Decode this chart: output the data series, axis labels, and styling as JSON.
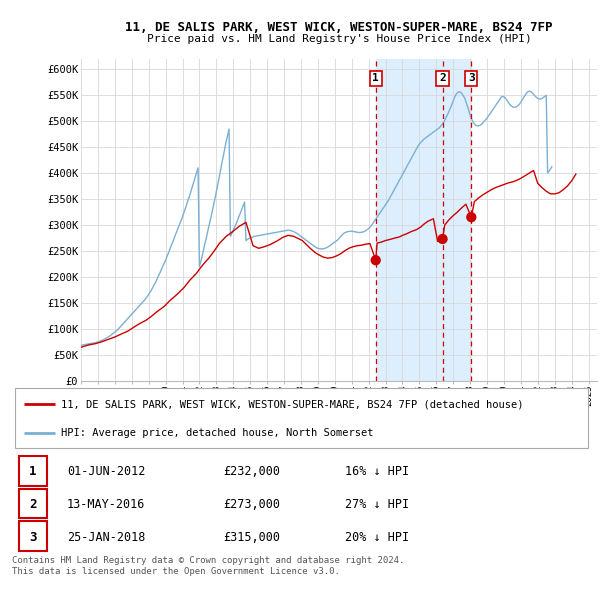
{
  "title": "11, DE SALIS PARK, WEST WICK, WESTON-SUPER-MARE, BS24 7FP",
  "subtitle": "Price paid vs. HM Land Registry's House Price Index (HPI)",
  "background_color": "#ffffff",
  "grid_color": "#d8d8d8",
  "hpi_color": "#7bafd4",
  "price_color": "#cc0000",
  "vline_color": "#cc0000",
  "shade_color": "#ddeeff",
  "yticks": [
    0,
    50000,
    100000,
    150000,
    200000,
    250000,
    300000,
    350000,
    400000,
    450000,
    500000,
    550000,
    600000
  ],
  "ytick_labels": [
    "£0",
    "£50K",
    "£100K",
    "£150K",
    "£200K",
    "£250K",
    "£300K",
    "£350K",
    "£400K",
    "£450K",
    "£500K",
    "£550K",
    "£600K"
  ],
  "xmin": 1995.0,
  "xmax": 2025.5,
  "ymin": 0,
  "ymax": 620000,
  "transaction_dates": [
    2012.42,
    2016.37,
    2018.07
  ],
  "transaction_prices": [
    232000,
    273000,
    315000
  ],
  "transaction_labels": [
    "1",
    "2",
    "3"
  ],
  "legend_property": "11, DE SALIS PARK, WEST WICK, WESTON-SUPER-MARE, BS24 7FP (detached house)",
  "legend_hpi": "HPI: Average price, detached house, North Somerset",
  "sale_rows": [
    {
      "num": "1",
      "date": "01-JUN-2012",
      "price": "£232,000",
      "pct": "16% ↓ HPI"
    },
    {
      "num": "2",
      "date": "13-MAY-2016",
      "price": "£273,000",
      "pct": "27% ↓ HPI"
    },
    {
      "num": "3",
      "date": "25-JAN-2018",
      "price": "£315,000",
      "pct": "20% ↓ HPI"
    }
  ],
  "footer": "Contains HM Land Registry data © Crown copyright and database right 2024.\nThis data is licensed under the Open Government Licence v3.0.",
  "hpi_x": [
    1995.0,
    1995.08,
    1995.17,
    1995.25,
    1995.33,
    1995.42,
    1995.5,
    1995.58,
    1995.67,
    1995.75,
    1995.83,
    1995.92,
    1996.0,
    1996.08,
    1996.17,
    1996.25,
    1996.33,
    1996.42,
    1996.5,
    1996.58,
    1996.67,
    1996.75,
    1996.83,
    1996.92,
    1997.0,
    1997.08,
    1997.17,
    1997.25,
    1997.33,
    1997.42,
    1997.5,
    1997.58,
    1997.67,
    1997.75,
    1997.83,
    1997.92,
    1998.0,
    1998.08,
    1998.17,
    1998.25,
    1998.33,
    1998.42,
    1998.5,
    1998.58,
    1998.67,
    1998.75,
    1998.83,
    1998.92,
    1999.0,
    1999.08,
    1999.17,
    1999.25,
    1999.33,
    1999.42,
    1999.5,
    1999.58,
    1999.67,
    1999.75,
    1999.83,
    1999.92,
    2000.0,
    2000.08,
    2000.17,
    2000.25,
    2000.33,
    2000.42,
    2000.5,
    2000.58,
    2000.67,
    2000.75,
    2000.83,
    2000.92,
    2001.0,
    2001.08,
    2001.17,
    2001.25,
    2001.33,
    2001.42,
    2001.5,
    2001.58,
    2001.67,
    2001.75,
    2001.83,
    2001.92,
    2002.0,
    2002.08,
    2002.17,
    2002.25,
    2002.33,
    2002.42,
    2002.5,
    2002.58,
    2002.67,
    2002.75,
    2002.83,
    2002.92,
    2003.0,
    2003.08,
    2003.17,
    2003.25,
    2003.33,
    2003.42,
    2003.5,
    2003.58,
    2003.67,
    2003.75,
    2003.83,
    2003.92,
    2004.0,
    2004.08,
    2004.17,
    2004.25,
    2004.33,
    2004.42,
    2004.5,
    2004.58,
    2004.67,
    2004.75,
    2004.83,
    2004.92,
    2005.0,
    2005.08,
    2005.17,
    2005.25,
    2005.33,
    2005.42,
    2005.5,
    2005.58,
    2005.67,
    2005.75,
    2005.83,
    2005.92,
    2006.0,
    2006.08,
    2006.17,
    2006.25,
    2006.33,
    2006.42,
    2006.5,
    2006.58,
    2006.67,
    2006.75,
    2006.83,
    2006.92,
    2007.0,
    2007.08,
    2007.17,
    2007.25,
    2007.33,
    2007.42,
    2007.5,
    2007.58,
    2007.67,
    2007.75,
    2007.83,
    2007.92,
    2008.0,
    2008.08,
    2008.17,
    2008.25,
    2008.33,
    2008.42,
    2008.5,
    2008.58,
    2008.67,
    2008.75,
    2008.83,
    2008.92,
    2009.0,
    2009.08,
    2009.17,
    2009.25,
    2009.33,
    2009.42,
    2009.5,
    2009.58,
    2009.67,
    2009.75,
    2009.83,
    2009.92,
    2010.0,
    2010.08,
    2010.17,
    2010.25,
    2010.33,
    2010.42,
    2010.5,
    2010.58,
    2010.67,
    2010.75,
    2010.83,
    2010.92,
    2011.0,
    2011.08,
    2011.17,
    2011.25,
    2011.33,
    2011.42,
    2011.5,
    2011.58,
    2011.67,
    2011.75,
    2011.83,
    2011.92,
    2012.0,
    2012.08,
    2012.17,
    2012.25,
    2012.33,
    2012.42,
    2012.5,
    2012.58,
    2012.67,
    2012.75,
    2012.83,
    2012.92,
    2013.0,
    2013.08,
    2013.17,
    2013.25,
    2013.33,
    2013.42,
    2013.5,
    2013.58,
    2013.67,
    2013.75,
    2013.83,
    2013.92,
    2014.0,
    2014.08,
    2014.17,
    2014.25,
    2014.33,
    2014.42,
    2014.5,
    2014.58,
    2014.67,
    2014.75,
    2014.83,
    2014.92,
    2015.0,
    2015.08,
    2015.17,
    2015.25,
    2015.33,
    2015.42,
    2015.5,
    2015.58,
    2015.67,
    2015.75,
    2015.83,
    2015.92,
    2016.0,
    2016.08,
    2016.17,
    2016.25,
    2016.33,
    2016.42,
    2016.5,
    2016.58,
    2016.67,
    2016.75,
    2016.83,
    2016.92,
    2017.0,
    2017.08,
    2017.17,
    2017.25,
    2017.33,
    2017.42,
    2017.5,
    2017.58,
    2017.67,
    2017.75,
    2017.83,
    2017.92,
    2018.0,
    2018.08,
    2018.17,
    2018.25,
    2018.33,
    2018.42,
    2018.5,
    2018.58,
    2018.67,
    2018.75,
    2018.83,
    2018.92,
    2019.0,
    2019.08,
    2019.17,
    2019.25,
    2019.33,
    2019.42,
    2019.5,
    2019.58,
    2019.67,
    2019.75,
    2019.83,
    2019.92,
    2020.0,
    2020.08,
    2020.17,
    2020.25,
    2020.33,
    2020.42,
    2020.5,
    2020.58,
    2020.67,
    2020.75,
    2020.83,
    2020.92,
    2021.0,
    2021.08,
    2021.17,
    2021.25,
    2021.33,
    2021.42,
    2021.5,
    2021.58,
    2021.67,
    2021.75,
    2021.83,
    2021.92,
    2022.0,
    2022.08,
    2022.17,
    2022.25,
    2022.33,
    2022.42,
    2022.5,
    2022.58,
    2022.67,
    2022.75,
    2022.83,
    2022.92,
    2023.0,
    2023.08,
    2023.17,
    2023.25,
    2023.33,
    2023.42,
    2023.5,
    2023.58,
    2023.67,
    2023.75,
    2023.83,
    2023.92,
    2024.0,
    2024.08,
    2024.17,
    2024.25
  ],
  "hpi_y": [
    68000,
    68500,
    69000,
    69500,
    70000,
    70500,
    71000,
    71500,
    72000,
    72500,
    73000,
    73500,
    74500,
    75500,
    76500,
    77500,
    79000,
    80500,
    82000,
    83500,
    85000,
    87000,
    89000,
    91000,
    93000,
    95500,
    98000,
    101000,
    104000,
    107000,
    110000,
    113000,
    116000,
    119000,
    122000,
    125000,
    128000,
    131000,
    134000,
    137000,
    140000,
    143000,
    146000,
    149000,
    152000,
    155000,
    158500,
    162000,
    166000,
    170000,
    175000,
    180000,
    185000,
    190000,
    196000,
    202000,
    208000,
    214000,
    220000,
    226000,
    232000,
    239000,
    246000,
    253000,
    260000,
    267000,
    274000,
    281000,
    288000,
    295000,
    302000,
    309000,
    316000,
    324000,
    332000,
    340000,
    348000,
    356000,
    365000,
    374000,
    383000,
    392000,
    401000,
    410000,
    220000,
    230000,
    241000,
    253000,
    265000,
    277000,
    289000,
    301000,
    313000,
    325000,
    338000,
    351000,
    364000,
    378000,
    392000,
    406000,
    420000,
    434000,
    448000,
    461000,
    473000,
    485000,
    278000,
    284000,
    290000,
    296000,
    302000,
    309000,
    316000,
    323000,
    330000,
    337000,
    344000,
    270000,
    272000,
    274000,
    275000,
    276000,
    277000,
    278000,
    278500,
    279000,
    279500,
    280000,
    280500,
    281000,
    281500,
    282000,
    282500,
    283000,
    283500,
    284000,
    284500,
    285000,
    285500,
    286000,
    286500,
    287000,
    287500,
    288000,
    288500,
    289000,
    289500,
    290000,
    289500,
    289000,
    288000,
    287000,
    285500,
    284000,
    282000,
    280000,
    278000,
    276000,
    274000,
    272000,
    270000,
    268000,
    266000,
    264000,
    262000,
    260000,
    258000,
    256000,
    255000,
    254500,
    254000,
    254000,
    254000,
    255000,
    256000,
    257500,
    259000,
    261000,
    263000,
    265000,
    267000,
    269000,
    271000,
    274000,
    277000,
    280000,
    283000,
    285000,
    286000,
    287000,
    287500,
    288000,
    288000,
    287500,
    287000,
    286500,
    286000,
    285500,
    285500,
    286000,
    286500,
    287500,
    289000,
    291000,
    293000,
    296000,
    299000,
    303000,
    307000,
    311000,
    315000,
    319000,
    323000,
    327000,
    331000,
    335000,
    339000,
    343000,
    347000,
    352000,
    357000,
    362000,
    367000,
    372000,
    377000,
    382000,
    387000,
    392000,
    397000,
    402000,
    407000,
    412000,
    417000,
    422000,
    427000,
    432000,
    437000,
    442000,
    447000,
    452000,
    456000,
    459000,
    462000,
    465000,
    467000,
    469000,
    471000,
    473000,
    475000,
    477000,
    479000,
    481000,
    483000,
    485000,
    487000,
    490000,
    493000,
    497000,
    502000,
    507000,
    513000,
    519000,
    525000,
    532000,
    539000,
    546000,
    552000,
    555000,
    557000,
    556000,
    554000,
    550000,
    545000,
    538000,
    530000,
    521000,
    512000,
    505000,
    499000,
    495000,
    492000,
    491000,
    491000,
    492000,
    494000,
    497000,
    500000,
    503000,
    506000,
    510000,
    514000,
    518000,
    522000,
    526000,
    530000,
    534000,
    538000,
    542000,
    546000,
    548000,
    547000,
    545000,
    541000,
    537000,
    533000,
    530000,
    528000,
    527000,
    527000,
    528000,
    530000,
    533000,
    537000,
    541000,
    546000,
    550000,
    554000,
    557000,
    558000,
    557000,
    555000,
    552000,
    549000,
    546000,
    544000,
    543000,
    543000,
    544000,
    546000,
    548000,
    550000,
    400000,
    404000,
    408000,
    412000
  ],
  "price_x": [
    1995.0,
    1995.17,
    1995.5,
    1995.83,
    1996.25,
    1996.58,
    1997.0,
    1997.33,
    1997.75,
    1998.08,
    1998.42,
    1998.83,
    1999.17,
    1999.5,
    1999.92,
    2000.25,
    2000.67,
    2001.08,
    2001.42,
    2001.83,
    2002.17,
    2002.58,
    2002.92,
    2003.17,
    2003.58,
    2004.0,
    2004.33,
    2004.75,
    2005.17,
    2005.5,
    2005.83,
    2006.17,
    2006.58,
    2006.92,
    2007.25,
    2007.58,
    2007.83,
    2008.08,
    2008.33,
    2008.58,
    2008.83,
    2009.08,
    2009.33,
    2009.58,
    2009.83,
    2010.08,
    2010.33,
    2010.58,
    2010.83,
    2011.08,
    2011.33,
    2011.58,
    2011.83,
    2012.08,
    2012.42,
    2012.5,
    2012.75,
    2013.0,
    2013.25,
    2013.58,
    2013.83,
    2014.0,
    2014.25,
    2014.5,
    2014.83,
    2015.08,
    2015.25,
    2015.5,
    2015.83,
    2016.08,
    2016.37,
    2016.5,
    2016.75,
    2017.0,
    2017.25,
    2017.5,
    2017.75,
    2018.07,
    2018.25,
    2018.5,
    2018.75,
    2019.0,
    2019.25,
    2019.5,
    2019.75,
    2020.0,
    2020.25,
    2020.5,
    2020.75,
    2021.0,
    2021.25,
    2021.5,
    2021.75,
    2022.0,
    2022.25,
    2022.5,
    2022.75,
    2023.0,
    2023.25,
    2023.5,
    2023.75,
    2024.0,
    2024.25
  ],
  "price_y": [
    64000,
    66000,
    69000,
    71000,
    75000,
    79000,
    84000,
    89000,
    95000,
    102000,
    109000,
    116000,
    124000,
    133000,
    143000,
    154000,
    166000,
    179000,
    193000,
    207000,
    222000,
    237000,
    252000,
    264000,
    278000,
    288000,
    297000,
    305000,
    260000,
    255000,
    258000,
    262000,
    269000,
    276000,
    280000,
    278000,
    274000,
    270000,
    262000,
    254000,
    247000,
    242000,
    238000,
    236000,
    237000,
    240000,
    244000,
    250000,
    255000,
    258000,
    260000,
    261000,
    263000,
    264000,
    232000,
    265000,
    267000,
    270000,
    272000,
    275000,
    277000,
    280000,
    283000,
    287000,
    291000,
    296000,
    301000,
    307000,
    312000,
    268000,
    273000,
    300000,
    310000,
    318000,
    325000,
    333000,
    340000,
    315000,
    345000,
    352000,
    358000,
    363000,
    368000,
    372000,
    375000,
    378000,
    381000,
    383000,
    386000,
    390000,
    395000,
    400000,
    405000,
    380000,
    372000,
    365000,
    360000,
    360000,
    362000,
    368000,
    375000,
    385000,
    398000
  ]
}
